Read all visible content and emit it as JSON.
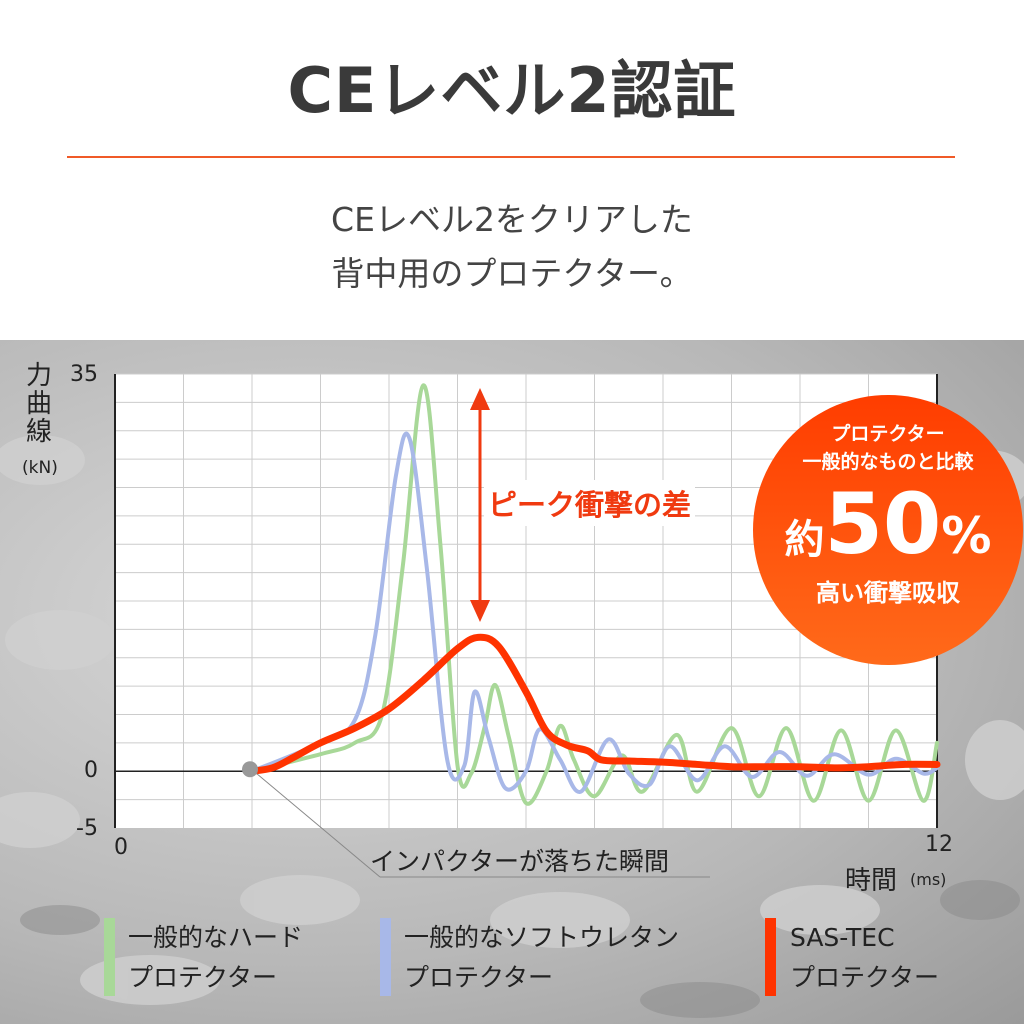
{
  "header": {
    "title": "CEレベル2認証",
    "subtitle_line1": "CEレベル2をクリアした",
    "subtitle_line2": "背中用のプロテクター。"
  },
  "badge": {
    "line1": "プロテクター",
    "line2": "一般的なものと比較",
    "prefix": "約",
    "value": "50",
    "unit": "%",
    "line3": "高い衝撃吸収"
  },
  "annotations": {
    "peak_difference": "ピーク衝撃の差",
    "impact_moment": "インパクターが落ちた瞬間"
  },
  "colors": {
    "accent": "#f05a28",
    "sas_tec": "#ff3300",
    "hard": "#a8d898",
    "soft": "#a8b8e8",
    "badge": "#ff4a0a"
  },
  "chart_data": {
    "type": "line",
    "ylabel": "力曲線",
    "yunit": "(kN)",
    "xlabel": "時間",
    "xunit": "(ms)",
    "xlim": [
      0,
      12
    ],
    "ylim": [
      -5,
      35
    ],
    "x_tick_labels": [
      "0",
      "12"
    ],
    "y_tick_labels": [
      "35",
      "0",
      "-5"
    ],
    "grid": true,
    "impact_point": {
      "x": 2,
      "y": 0
    },
    "series": [
      {
        "name": "一般的なハードプロテクター",
        "label_line1": "一般的なハード",
        "label_line2": "プロテクター",
        "color": "#a8d898",
        "points": [
          [
            2,
            0
          ],
          [
            3,
            1.5
          ],
          [
            3.5,
            2.5
          ],
          [
            3.9,
            5
          ],
          [
            4.2,
            18
          ],
          [
            4.5,
            34
          ],
          [
            4.75,
            20
          ],
          [
            5,
            0.5
          ],
          [
            5.2,
            -0.2
          ],
          [
            5.4,
            4
          ],
          [
            5.55,
            7.6
          ],
          [
            5.75,
            3
          ],
          [
            6,
            -2.8
          ],
          [
            6.3,
            0
          ],
          [
            6.5,
            4
          ],
          [
            6.7,
            1
          ],
          [
            7,
            -2.2
          ],
          [
            7.4,
            1.4
          ],
          [
            7.7,
            -1.8
          ],
          [
            8.2,
            3.2
          ],
          [
            8.5,
            -1.8
          ],
          [
            9,
            3.8
          ],
          [
            9.4,
            -2.2
          ],
          [
            9.8,
            3.8
          ],
          [
            10.2,
            -2.6
          ],
          [
            10.6,
            3.6
          ],
          [
            11,
            -2.6
          ],
          [
            11.4,
            3.6
          ],
          [
            11.8,
            -2.6
          ],
          [
            12,
            2.5
          ]
        ]
      },
      {
        "name": "一般的なソフトウレタンプロテクター",
        "label_line1": "一般的なソフトウレタン",
        "label_line2": "プロテクター",
        "color": "#a8b8e8",
        "points": [
          [
            2,
            0
          ],
          [
            3,
            2.5
          ],
          [
            3.5,
            4.5
          ],
          [
            3.8,
            12
          ],
          [
            4.1,
            26
          ],
          [
            4.3,
            29.3
          ],
          [
            4.55,
            18
          ],
          [
            4.85,
            1
          ],
          [
            5.1,
            0.5
          ],
          [
            5.25,
            7
          ],
          [
            5.45,
            3
          ],
          [
            5.7,
            -1.5
          ],
          [
            6,
            0
          ],
          [
            6.2,
            3.7
          ],
          [
            6.5,
            1
          ],
          [
            6.8,
            -1.8
          ],
          [
            7.2,
            2.8
          ],
          [
            7.5,
            -0.2
          ],
          [
            7.8,
            -1.2
          ],
          [
            8.1,
            2.2
          ],
          [
            8.5,
            -0.8
          ],
          [
            8.9,
            2.2
          ],
          [
            9.3,
            -0.5
          ],
          [
            9.7,
            1.7
          ],
          [
            10.1,
            -0.4
          ],
          [
            10.5,
            1.5
          ],
          [
            11,
            -0.3
          ],
          [
            11.4,
            1.1
          ],
          [
            11.8,
            -0.2
          ],
          [
            12,
            0.3
          ]
        ]
      },
      {
        "name": "SAS-TECプロテクター",
        "label_line1": "SAS-TEC",
        "label_line2": "プロテクター",
        "color": "#ff3300",
        "points": [
          [
            2,
            0
          ],
          [
            2.3,
            0.3
          ],
          [
            2.6,
            1.2
          ],
          [
            3,
            2.5
          ],
          [
            3.5,
            3.8
          ],
          [
            4,
            5.5
          ],
          [
            4.5,
            8
          ],
          [
            5,
            10.8
          ],
          [
            5.3,
            11.8
          ],
          [
            5.6,
            11
          ],
          [
            6,
            7
          ],
          [
            6.3,
            3.5
          ],
          [
            6.6,
            2.3
          ],
          [
            6.9,
            1.8
          ],
          [
            7.1,
            1
          ],
          [
            7.5,
            0.9
          ],
          [
            8,
            0.8
          ],
          [
            8.5,
            0.6
          ],
          [
            9,
            0.4
          ],
          [
            9.5,
            0.4
          ],
          [
            10,
            0.4
          ],
          [
            10.5,
            0.3
          ],
          [
            11,
            0.4
          ],
          [
            11.5,
            0.6
          ],
          [
            12,
            0.6
          ]
        ]
      }
    ]
  }
}
